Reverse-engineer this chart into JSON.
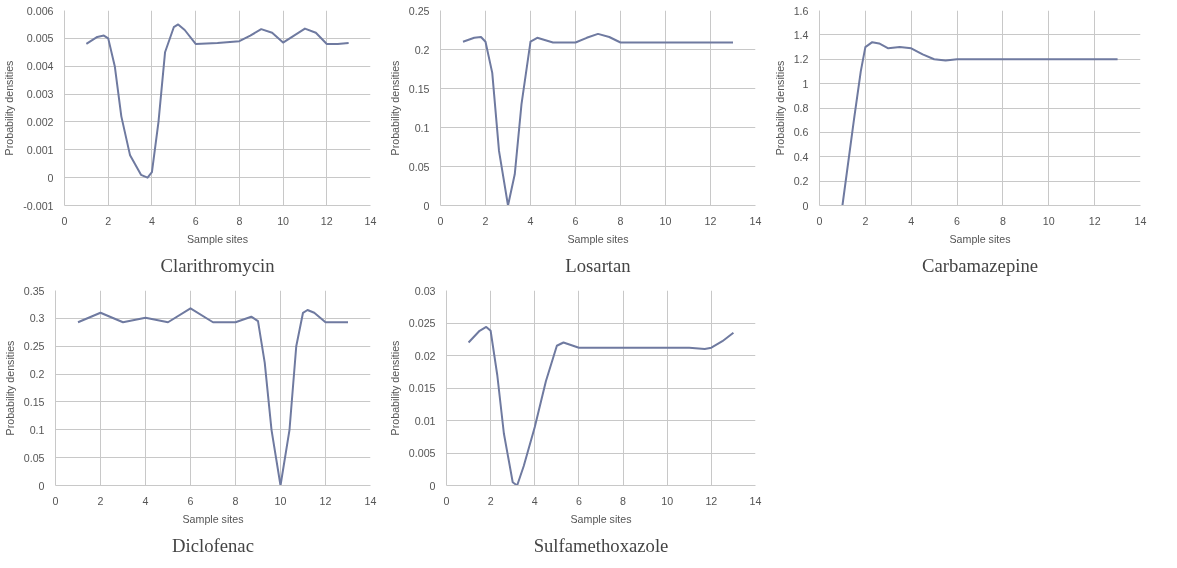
{
  "chart_data": [
    {
      "type": "line",
      "title": "Clarithromycin",
      "xlabel": "Sample sites",
      "ylabel": "Probability densities",
      "xlim": [
        0,
        14
      ],
      "xticks": [
        0,
        2,
        4,
        6,
        8,
        10,
        12,
        14
      ],
      "ylim": [
        -0.001,
        0.006
      ],
      "yticks": [
        -0.001,
        0,
        0.001,
        0.002,
        0.003,
        0.004,
        0.005,
        0.006
      ],
      "grid": true,
      "series": [
        {
          "color": "#6f7aa0",
          "x": [
            1,
            1.5,
            1.8,
            2,
            2.3,
            2.6,
            3,
            3.5,
            3.8,
            4,
            4.3,
            4.6,
            5,
            5.2,
            5.5,
            6,
            7,
            8,
            8.5,
            9,
            9.5,
            10,
            10.5,
            11,
            11.5,
            12,
            12.5,
            13
          ],
          "values": [
            0.0048,
            0.00505,
            0.0051,
            0.005,
            0.004,
            0.0022,
            0.0008,
            0.0001,
            0.0,
            0.0002,
            0.002,
            0.0045,
            0.0054,
            0.0055,
            0.0053,
            0.0048,
            0.00483,
            0.0049,
            0.0051,
            0.00533,
            0.0052,
            0.00485,
            0.0051,
            0.00535,
            0.0052,
            0.0048,
            0.0048,
            0.00483
          ]
        }
      ]
    },
    {
      "type": "line",
      "title": "Losartan",
      "xlabel": "Sample sites",
      "ylabel": "Probability densities",
      "xlim": [
        0,
        14
      ],
      "xticks": [
        0,
        2,
        4,
        6,
        8,
        10,
        12,
        14
      ],
      "ylim": [
        0,
        0.25
      ],
      "yticks": [
        0,
        0.05,
        0.1,
        0.15,
        0.2,
        0.25
      ],
      "grid": true,
      "series": [
        {
          "color": "#6f7aa0",
          "x": [
            1,
            1.5,
            1.8,
            2,
            2.3,
            2.6,
            3,
            3.3,
            3.6,
            4,
            4.3,
            5,
            6,
            6.5,
            7,
            7.5,
            8,
            9,
            10,
            11,
            12,
            13
          ],
          "values": [
            0.21,
            0.215,
            0.216,
            0.21,
            0.17,
            0.07,
            0.0,
            0.04,
            0.13,
            0.21,
            0.215,
            0.209,
            0.209,
            0.215,
            0.22,
            0.216,
            0.209,
            0.209,
            0.209,
            0.209,
            0.209,
            0.209
          ]
        }
      ]
    },
    {
      "type": "line",
      "title": "Carbamazepine",
      "xlabel": "Sample sites",
      "ylabel": "Probability densities",
      "xlim": [
        0,
        14
      ],
      "xticks": [
        0,
        2,
        4,
        6,
        8,
        10,
        12,
        14
      ],
      "ylim": [
        0,
        1.6
      ],
      "yticks": [
        0,
        0.2,
        0.4,
        0.6,
        0.8,
        1,
        1.2,
        1.4,
        1.6
      ],
      "grid": true,
      "series": [
        {
          "color": "#6f7aa0",
          "x": [
            1,
            1.5,
            1.8,
            2,
            2.3,
            2.6,
            3,
            3.5,
            4,
            4.5,
            5,
            5.5,
            6,
            7,
            8,
            9,
            10,
            11,
            12,
            13
          ],
          "values": [
            0,
            0.7,
            1.1,
            1.3,
            1.34,
            1.33,
            1.29,
            1.3,
            1.29,
            1.24,
            1.2,
            1.19,
            1.2,
            1.2,
            1.2,
            1.2,
            1.2,
            1.2,
            1.2,
            1.2
          ]
        }
      ]
    },
    {
      "type": "line",
      "title": "Diclofenac",
      "xlabel": "Sample sites",
      "ylabel": "Probability densities",
      "xlim": [
        0,
        14
      ],
      "xticks": [
        0,
        2,
        4,
        6,
        8,
        10,
        12,
        14
      ],
      "ylim": [
        0,
        0.35
      ],
      "yticks": [
        0,
        0.05,
        0.1,
        0.15,
        0.2,
        0.25,
        0.3,
        0.35
      ],
      "grid": true,
      "series": [
        {
          "color": "#6f7aa0",
          "x": [
            1,
            2,
            3,
            4,
            5,
            6,
            7,
            8,
            8.7,
            9,
            9.3,
            9.6,
            10,
            10.4,
            10.7,
            11,
            11.2,
            11.5,
            12,
            13
          ],
          "values": [
            0.293,
            0.31,
            0.293,
            0.301,
            0.293,
            0.318,
            0.293,
            0.293,
            0.303,
            0.295,
            0.22,
            0.1,
            0.0,
            0.1,
            0.25,
            0.31,
            0.315,
            0.31,
            0.293,
            0.293
          ]
        }
      ]
    },
    {
      "type": "line",
      "title": "Sulfamethoxazole",
      "xlabel": "Sample sites",
      "ylabel": "Probability densities",
      "xlim": [
        0,
        14
      ],
      "xticks": [
        0,
        2,
        4,
        6,
        8,
        10,
        12,
        14
      ],
      "ylim": [
        0,
        0.03
      ],
      "yticks": [
        0,
        0.005,
        0.01,
        0.015,
        0.02,
        0.025,
        0.03
      ],
      "grid": true,
      "series": [
        {
          "color": "#6f7aa0",
          "x": [
            1,
            1.5,
            1.8,
            2,
            2.3,
            2.6,
            3,
            3.2,
            3.5,
            4,
            4.5,
            5,
            5.3,
            6,
            7,
            8,
            9,
            10,
            11,
            11.7,
            12,
            12.5,
            13
          ],
          "values": [
            0.022,
            0.0238,
            0.0244,
            0.0238,
            0.017,
            0.008,
            0.0005,
            0.0,
            0.003,
            0.009,
            0.016,
            0.0215,
            0.022,
            0.0212,
            0.0212,
            0.0212,
            0.0212,
            0.0212,
            0.0212,
            0.021,
            0.0212,
            0.0222,
            0.0235
          ]
        }
      ]
    }
  ]
}
